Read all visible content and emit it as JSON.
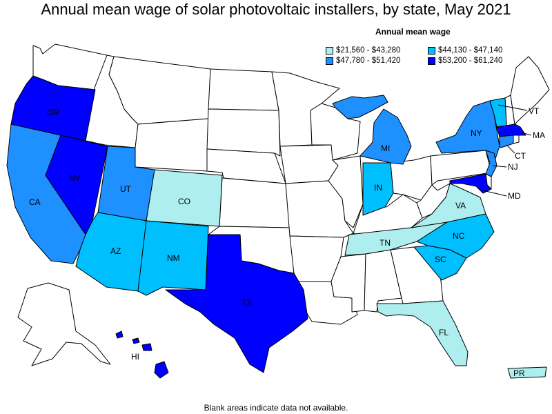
{
  "title": "Annual mean wage of solar photovoltaic installers, by state, May 2021",
  "legend": {
    "title": "Annual mean wage",
    "items": [
      {
        "label": "$21,560 - $43,280",
        "color": "#aeeeee"
      },
      {
        "label": "$44,130 - $47,140",
        "color": "#00bfff"
      },
      {
        "label": "$47,780 - $51,420",
        "color": "#1e90ff"
      },
      {
        "label": "$53,200 - $61,240",
        "color": "#0000ff"
      }
    ]
  },
  "footnote": "Blank areas indicate data not available.",
  "states": {
    "OR": {
      "label": "OR",
      "tier": 4
    },
    "NV": {
      "label": "NV",
      "tier": 4
    },
    "CA": {
      "label": "CA",
      "tier": 3
    },
    "UT": {
      "label": "UT",
      "tier": 3
    },
    "CO": {
      "label": "CO",
      "tier": 1
    },
    "AZ": {
      "label": "AZ",
      "tier": 2
    },
    "NM": {
      "label": "NM",
      "tier": 2
    },
    "TX": {
      "label": "TX",
      "tier": 4
    },
    "HI": {
      "label": "HI",
      "tier": 4
    },
    "MI": {
      "label": "MI",
      "tier": 3
    },
    "IN": {
      "label": "IN",
      "tier": 2
    },
    "TN": {
      "label": "TN",
      "tier": 1
    },
    "VA": {
      "label": "VA",
      "tier": 1
    },
    "NC": {
      "label": "NC",
      "tier": 2
    },
    "SC": {
      "label": "SC",
      "tier": 2
    },
    "FL": {
      "label": "FL",
      "tier": 1
    },
    "NY": {
      "label": "NY",
      "tier": 3
    },
    "VT": {
      "label": "VT",
      "tier": 2
    },
    "MA": {
      "label": "MA",
      "tier": 4
    },
    "CT": {
      "label": "CT",
      "tier": 3
    },
    "NJ": {
      "label": "NJ",
      "tier": 3
    },
    "MD": {
      "label": "MD",
      "tier": 4
    },
    "PR": {
      "label": "PR",
      "tier": 1
    }
  }
}
